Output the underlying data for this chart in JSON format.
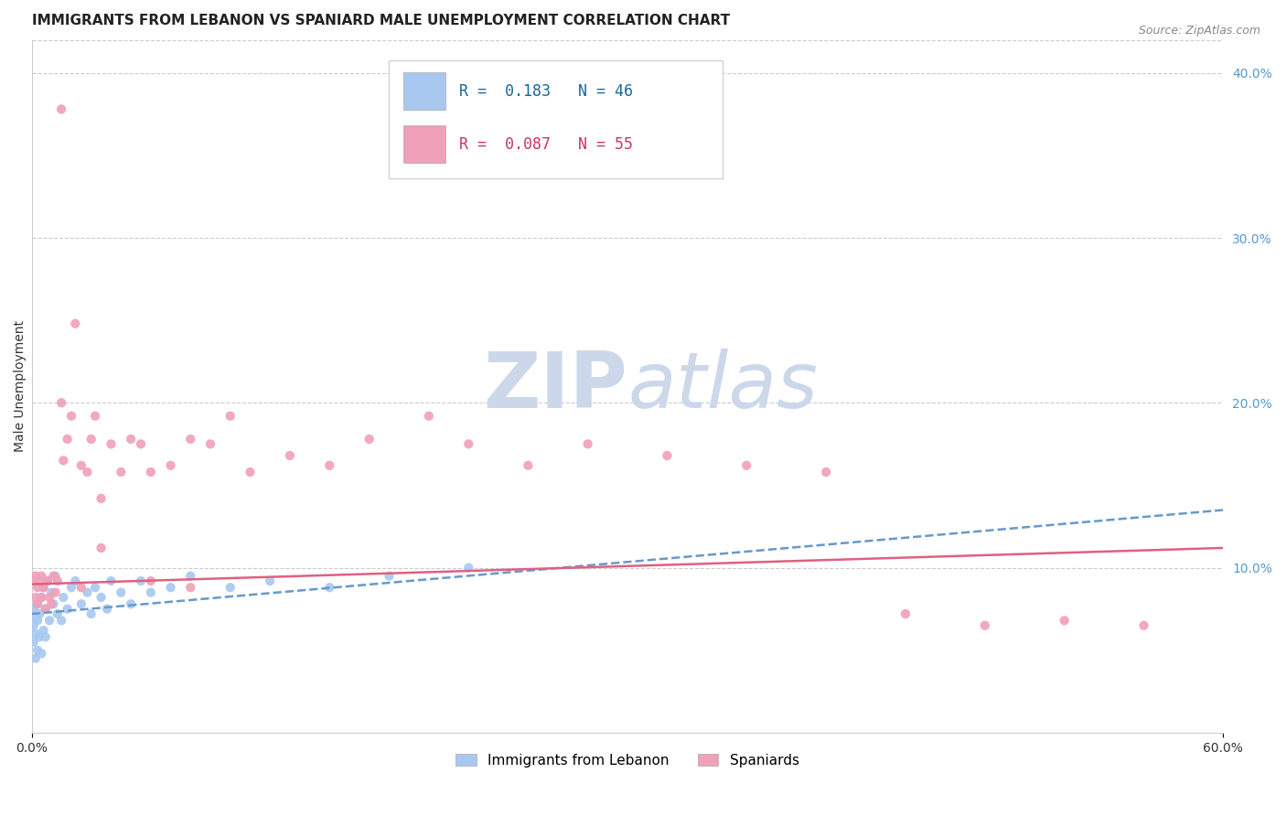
{
  "title": "IMMIGRANTS FROM LEBANON VS SPANIARD MALE UNEMPLOYMENT CORRELATION CHART",
  "source": "Source: ZipAtlas.com",
  "ylabel": "Male Unemployment",
  "xlim": [
    0.0,
    0.6
  ],
  "ylim": [
    0.0,
    0.42
  ],
  "yticks_right": [
    0.1,
    0.2,
    0.3,
    0.4
  ],
  "yticklabels_right": [
    "10.0%",
    "20.0%",
    "30.0%",
    "40.0%"
  ],
  "grid_color": "#cccccc",
  "background_color": "#ffffff",
  "watermark_zip": "ZIP",
  "watermark_atlas": "atlas",
  "watermark_color": "#ccd8ea",
  "series": [
    {
      "label": "Immigrants from Lebanon",
      "R": "0.183",
      "N": "46",
      "color": "#a8c8f0",
      "trend_color": "#6699cc",
      "trend_style": "dashed",
      "x": [
        0.001,
        0.001,
        0.001,
        0.002,
        0.002,
        0.002,
        0.003,
        0.003,
        0.003,
        0.004,
        0.004,
        0.005,
        0.005,
        0.006,
        0.006,
        0.007,
        0.007,
        0.008,
        0.009,
        0.01,
        0.011,
        0.012,
        0.013,
        0.015,
        0.016,
        0.018,
        0.02,
        0.022,
        0.025,
        0.028,
        0.03,
        0.032,
        0.035,
        0.038,
        0.04,
        0.045,
        0.05,
        0.055,
        0.06,
        0.07,
        0.08,
        0.1,
        0.12,
        0.15,
        0.18,
        0.22
      ],
      "y": [
        0.055,
        0.065,
        0.075,
        0.045,
        0.06,
        0.07,
        0.05,
        0.068,
        0.078,
        0.058,
        0.072,
        0.048,
        0.082,
        0.062,
        0.088,
        0.058,
        0.075,
        0.092,
        0.068,
        0.085,
        0.078,
        0.095,
        0.072,
        0.068,
        0.082,
        0.075,
        0.088,
        0.092,
        0.078,
        0.085,
        0.072,
        0.088,
        0.082,
        0.075,
        0.092,
        0.085,
        0.078,
        0.092,
        0.085,
        0.088,
        0.095,
        0.088,
        0.092,
        0.088,
        0.095,
        0.1
      ],
      "trend_x": [
        0.0,
        0.6
      ],
      "trend_y": [
        0.072,
        0.135
      ]
    },
    {
      "label": "Spaniards",
      "R": "0.087",
      "N": "55",
      "color": "#f0a0b8",
      "trend_color": "#e06080",
      "trend_style": "solid",
      "x": [
        0.001,
        0.002,
        0.002,
        0.003,
        0.003,
        0.004,
        0.005,
        0.005,
        0.006,
        0.007,
        0.008,
        0.009,
        0.01,
        0.011,
        0.012,
        0.013,
        0.015,
        0.016,
        0.018,
        0.02,
        0.022,
        0.025,
        0.028,
        0.03,
        0.032,
        0.035,
        0.04,
        0.045,
        0.05,
        0.055,
        0.06,
        0.07,
        0.08,
        0.09,
        0.1,
        0.11,
        0.13,
        0.15,
        0.17,
        0.2,
        0.22,
        0.25,
        0.28,
        0.32,
        0.36,
        0.4,
        0.44,
        0.48,
        0.52,
        0.56,
        0.015,
        0.025,
        0.035,
        0.06,
        0.08
      ],
      "y": [
        0.092,
        0.082,
        0.095,
        0.078,
        0.088,
        0.092,
        0.082,
        0.095,
        0.088,
        0.075,
        0.092,
        0.082,
        0.078,
        0.095,
        0.085,
        0.092,
        0.2,
        0.165,
        0.178,
        0.192,
        0.248,
        0.162,
        0.158,
        0.178,
        0.192,
        0.142,
        0.175,
        0.158,
        0.178,
        0.175,
        0.158,
        0.162,
        0.178,
        0.175,
        0.192,
        0.158,
        0.168,
        0.162,
        0.178,
        0.192,
        0.175,
        0.162,
        0.175,
        0.168,
        0.162,
        0.158,
        0.072,
        0.065,
        0.068,
        0.065,
        0.378,
        0.088,
        0.112,
        0.092,
        0.088
      ],
      "trend_x": [
        0.0,
        0.6
      ],
      "trend_y": [
        0.09,
        0.112
      ]
    }
  ],
  "legend_box_color_1": "#a8c8f0",
  "legend_box_color_2": "#f0a0b8",
  "title_fontsize": 11,
  "axis_label_fontsize": 10,
  "tick_fontsize": 10,
  "right_tick_color": "#5599cc"
}
